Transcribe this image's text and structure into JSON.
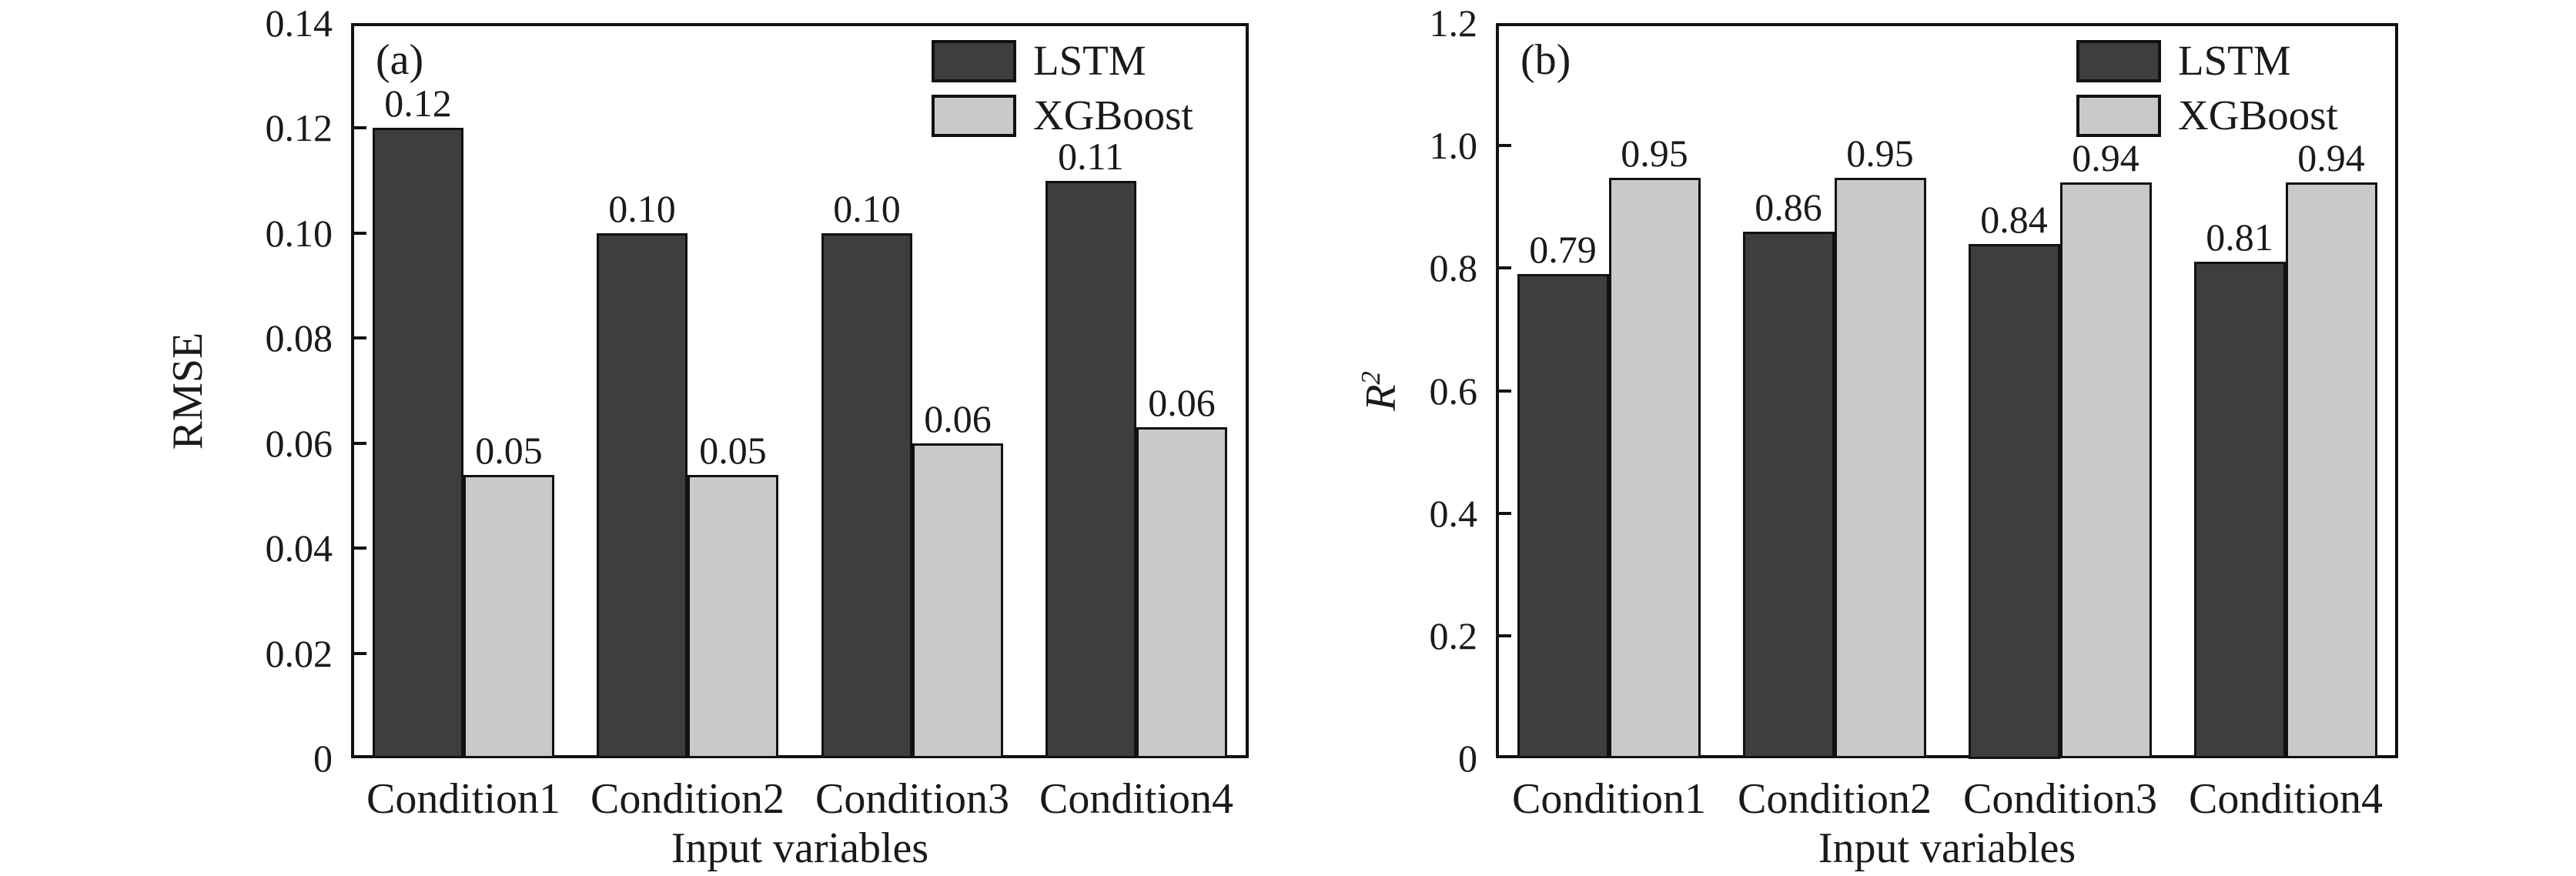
{
  "figure": {
    "background": "#ffffff",
    "text_color": "#1a1a1a",
    "colors": {
      "lstm": "#3e3e3e",
      "xgboost": "#c9c9c9",
      "bar_edge": "#111111",
      "frame": "#111111"
    }
  },
  "chart_data": [
    {
      "type": "bar",
      "panel_label": "(a)",
      "title": "",
      "xlabel": "Input variables",
      "ylabel": {
        "base": "RMSE",
        "sup": "",
        "italic": false
      },
      "categories": [
        "Condition1",
        "Condition2",
        "Condition3",
        "Condition4"
      ],
      "series": [
        {
          "name": "LSTM",
          "color_key": "lstm",
          "values": [
            0.12,
            0.1,
            0.1,
            0.11
          ],
          "labels": [
            "0.12",
            "0.10",
            "0.10",
            "0.11"
          ],
          "bar_heights": [
            0.12,
            0.1,
            0.1,
            0.11
          ]
        },
        {
          "name": "XGBoost",
          "color_key": "xgboost",
          "values": [
            0.05,
            0.05,
            0.06,
            0.06
          ],
          "labels": [
            "0.05",
            "0.05",
            "0.06",
            "0.06"
          ],
          "bar_heights": [
            0.054,
            0.054,
            0.06,
            0.063
          ]
        }
      ],
      "ylim": [
        0,
        0.14
      ],
      "yticks": [
        0,
        0.02,
        0.04,
        0.06,
        0.08,
        0.1,
        0.12,
        0.14
      ],
      "ytick_labels": [
        "0",
        "0.02",
        "0.04",
        "0.06",
        "0.08",
        "0.10",
        "0.12",
        "0.14"
      ],
      "grid": false,
      "legend": {
        "position": "top-right-inside",
        "entries": [
          "LSTM",
          "XGBoost"
        ]
      }
    },
    {
      "type": "bar",
      "panel_label": "(b)",
      "title": "",
      "xlabel": "Input variables",
      "ylabel": {
        "base": "R",
        "sup": "2",
        "italic": true
      },
      "categories": [
        "Condition1",
        "Condition2",
        "Condition3",
        "Condition4"
      ],
      "series": [
        {
          "name": "LSTM",
          "color_key": "lstm",
          "values": [
            0.79,
            0.86,
            0.84,
            0.81
          ],
          "labels": [
            "0.79",
            "0.86",
            "0.84",
            "0.81"
          ],
          "bar_heights": [
            0.79,
            0.86,
            0.84,
            0.81
          ]
        },
        {
          "name": "XGBoost",
          "color_key": "xgboost",
          "values": [
            0.95,
            0.95,
            0.94,
            0.94
          ],
          "labels": [
            "0.95",
            "0.95",
            "0.94",
            "0.94"
          ],
          "bar_heights": [
            0.947,
            0.947,
            0.94,
            0.94
          ]
        }
      ],
      "ylim": [
        0,
        1.2
      ],
      "yticks": [
        0,
        0.2,
        0.4,
        0.6,
        0.8,
        1.0,
        1.2
      ],
      "ytick_labels": [
        "0",
        "0.2",
        "0.4",
        "0.6",
        "0.8",
        "1.0",
        "1.2"
      ],
      "grid": false,
      "legend": {
        "position": "top-right-inside",
        "entries": [
          "LSTM",
          "XGBoost"
        ]
      }
    }
  ]
}
